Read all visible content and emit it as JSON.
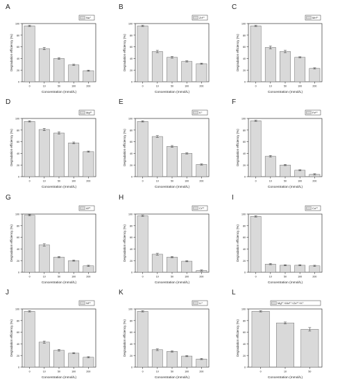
{
  "figure": {
    "ylabel": "Degradation efficiency (%)",
    "xlabel": "Concentration (mmol/L)",
    "colors": {
      "bar": "#d9d9d9",
      "bar_stroke": "#6b6b6b",
      "axis": "#333333",
      "text": "#222222"
    }
  },
  "chart_data": [
    {
      "panel": "A",
      "type": "bar",
      "legend": "Na⁺",
      "categories": [
        "0",
        "10",
        "50",
        "100",
        "200"
      ],
      "values": [
        96,
        57,
        40,
        29,
        19
      ],
      "errors": [
        1,
        2,
        1.5,
        1,
        1
      ],
      "ylim": [
        0,
        100
      ],
      "yticks": [
        0,
        20,
        40,
        60,
        80,
        100
      ],
      "xlabel": "Concentration (mmol/L)",
      "ylabel": "Degradation efficiency (%)"
    },
    {
      "panel": "B",
      "type": "bar",
      "legend": "Zn²⁺",
      "categories": [
        "0",
        "10",
        "50",
        "100",
        "200"
      ],
      "values": [
        96,
        52,
        42,
        35,
        31
      ],
      "errors": [
        1,
        2,
        1.5,
        1,
        1
      ],
      "ylim": [
        0,
        100
      ],
      "yticks": [
        0,
        20,
        40,
        60,
        80,
        100
      ],
      "xlabel": "Concentration (mmol/L)",
      "ylabel": "Degradation efficiency (%)"
    },
    {
      "panel": "C",
      "type": "bar",
      "legend": "Mn²⁺",
      "categories": [
        "0",
        "10",
        "50",
        "100",
        "200"
      ],
      "values": [
        96,
        59,
        52,
        42,
        23
      ],
      "errors": [
        1,
        2.5,
        2,
        1,
        1
      ],
      "ylim": [
        0,
        100
      ],
      "yticks": [
        0,
        20,
        40,
        60,
        80,
        100
      ],
      "xlabel": "Concentration (mmol/L)",
      "ylabel": "Degradation efficiency (%)"
    },
    {
      "panel": "D",
      "type": "bar",
      "legend": "Mg²⁺",
      "categories": [
        "0",
        "10",
        "50",
        "100",
        "200"
      ],
      "values": [
        95,
        81,
        75,
        58,
        43
      ],
      "errors": [
        1,
        2,
        2,
        1.5,
        1
      ],
      "ylim": [
        0,
        100
      ],
      "yticks": [
        0,
        20,
        40,
        60,
        80,
        100
      ],
      "xlabel": "Concentration (mmol/L)",
      "ylabel": "Degradation efficiency (%)"
    },
    {
      "panel": "E",
      "type": "bar",
      "legend": "K⁺",
      "categories": [
        "0",
        "10",
        "50",
        "100",
        "200"
      ],
      "values": [
        95,
        69,
        52,
        40,
        21
      ],
      "errors": [
        1,
        1.5,
        1.5,
        1,
        1
      ],
      "ylim": [
        0,
        100
      ],
      "yticks": [
        0,
        20,
        40,
        60,
        80,
        100
      ],
      "xlabel": "Concentration (mmol/L)",
      "ylabel": "Degradation efficiency (%)"
    },
    {
      "panel": "F",
      "type": "bar",
      "legend": "Fe²⁺",
      "categories": [
        "0",
        "10",
        "50",
        "100",
        "200"
      ],
      "values": [
        96,
        35,
        20,
        11,
        4
      ],
      "errors": [
        1,
        1.5,
        1,
        1,
        1
      ],
      "ylim": [
        0,
        100
      ],
      "yticks": [
        0,
        20,
        40,
        60,
        80,
        100
      ],
      "xlabel": "Concentration (mmol/L)",
      "ylabel": "Degradation efficiency (%)"
    },
    {
      "panel": "G",
      "type": "bar",
      "legend": "Al³⁺",
      "categories": [
        "0",
        "10",
        "50",
        "100",
        "200"
      ],
      "values": [
        98,
        47,
        26,
        20,
        11
      ],
      "errors": [
        1,
        2,
        1,
        1,
        1
      ],
      "ylim": [
        0,
        100
      ],
      "yticks": [
        0,
        20,
        40,
        60,
        80,
        100
      ],
      "xlabel": "Concentration (mmol/L)",
      "ylabel": "Degradation efficiency (%)"
    },
    {
      "panel": "H",
      "type": "bar",
      "legend": "Cr³⁺",
      "categories": [
        "0",
        "10",
        "50",
        "100",
        "200"
      ],
      "values": [
        97,
        31,
        26,
        19,
        3
      ],
      "errors": [
        1,
        1.5,
        1,
        1,
        1
      ],
      "ylim": [
        0,
        100
      ],
      "yticks": [
        0,
        20,
        40,
        60,
        80,
        100
      ],
      "xlabel": "Concentration (mmol/L)",
      "ylabel": "Degradation efficiency (%)"
    },
    {
      "panel": "I",
      "type": "bar",
      "legend": "Cu²⁺",
      "categories": [
        "0",
        "10",
        "50",
        "100",
        "200"
      ],
      "values": [
        96,
        14,
        12,
        12,
        11
      ],
      "errors": [
        1,
        1,
        1,
        1,
        1
      ],
      "ylim": [
        0,
        100
      ],
      "yticks": [
        0,
        20,
        40,
        60,
        80,
        100
      ],
      "xlabel": "Concentration (mmol/L)",
      "ylabel": "Degradation efficiency (%)"
    },
    {
      "panel": "J",
      "type": "bar",
      "legend": "Ni²⁺",
      "categories": [
        "0",
        "10",
        "50",
        "100",
        "200"
      ],
      "values": [
        96,
        43,
        29,
        24,
        17
      ],
      "errors": [
        1,
        2,
        1.5,
        1,
        1
      ],
      "ylim": [
        0,
        100
      ],
      "yticks": [
        0,
        20,
        40,
        60,
        80,
        100
      ],
      "xlabel": "Concentration (mmol/L)",
      "ylabel": "Degradation efficiency (%)"
    },
    {
      "panel": "K",
      "type": "bar",
      "legend": "Li⁺",
      "categories": [
        "0",
        "10",
        "50",
        "100",
        "200"
      ],
      "values": [
        96,
        30,
        27,
        19,
        14
      ],
      "errors": [
        1,
        1.5,
        1,
        1,
        1
      ],
      "ylim": [
        0,
        100
      ],
      "yticks": [
        0,
        20,
        40,
        60,
        80,
        100
      ],
      "xlabel": "Concentration (mmol/L)",
      "ylabel": "Degradation efficiency (%)"
    },
    {
      "panel": "L",
      "type": "bar",
      "legend": "Mg²⁺+Mn²⁺+Zn²⁺+K⁺",
      "categories": [
        "0",
        "10",
        "50"
      ],
      "values": [
        96,
        76,
        65
      ],
      "errors": [
        1,
        1.5,
        3
      ],
      "ylim": [
        0,
        100
      ],
      "yticks": [
        0,
        20,
        40,
        60,
        80,
        100
      ],
      "xlabel": "Concentration (mmol/L)",
      "ylabel": "Degradation efficiency (%)"
    }
  ]
}
